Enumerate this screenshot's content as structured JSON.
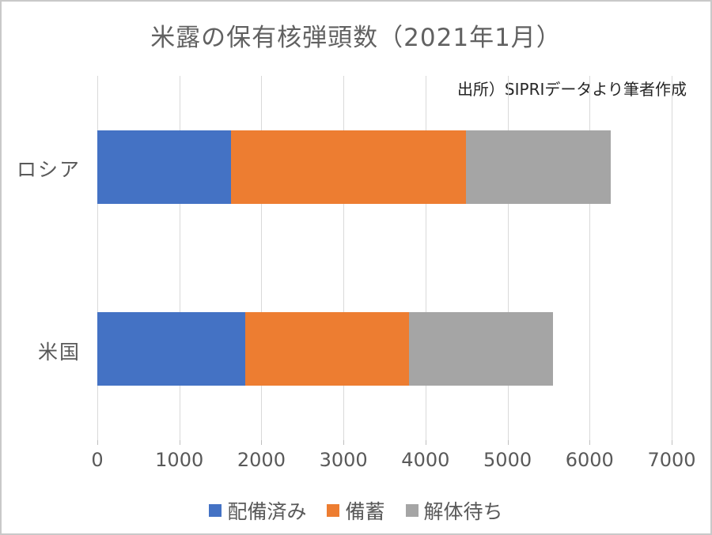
{
  "chart_data": {
    "type": "bar",
    "orientation": "horizontal",
    "stacked": true,
    "title": "米露の保有核弾頭数（2021年1月）",
    "categories": [
      "ロシア",
      "米国"
    ],
    "series": [
      {
        "name": "配備済み",
        "color": "#4472C4",
        "values": [
          1625,
          1800
        ]
      },
      {
        "name": "備蓄",
        "color": "#ED7D31",
        "values": [
          2870,
          2000
        ]
      },
      {
        "name": "解体待ち",
        "color": "#A5A5A5",
        "values": [
          1760,
          1750
        ]
      }
    ],
    "xlim": [
      0,
      7000
    ],
    "x_ticks": [
      "0",
      "1000",
      "2000",
      "3000",
      "4000",
      "5000",
      "6000",
      "7000"
    ],
    "grid": "vertical-only",
    "legend_position": "bottom-center"
  },
  "source_note": "出所）SIPRIデータより筆者作成",
  "style": {
    "gridline_color": "#d9d9d9",
    "text_color": "#595959",
    "source_text_color": "#262626",
    "background": "#ffffff"
  }
}
